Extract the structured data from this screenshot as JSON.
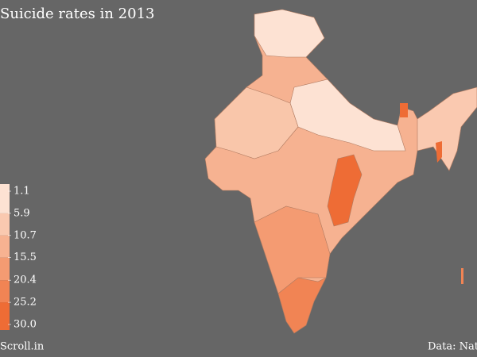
{
  "title": "Suicide rates in 2013",
  "legend": {
    "ticks": [
      1.1,
      5.9,
      10.7,
      15.5,
      20.4,
      25.2,
      {
        "value": 30,
        "label": "30.0"
      }
    ],
    "colors": [
      "#fde2d3",
      "#fac9b0",
      "#f7b291",
      "#f49b72",
      "#f18454",
      "#ee6c35"
    ]
  },
  "credit": "Scroll.in",
  "source": "Data: Nat"
}
